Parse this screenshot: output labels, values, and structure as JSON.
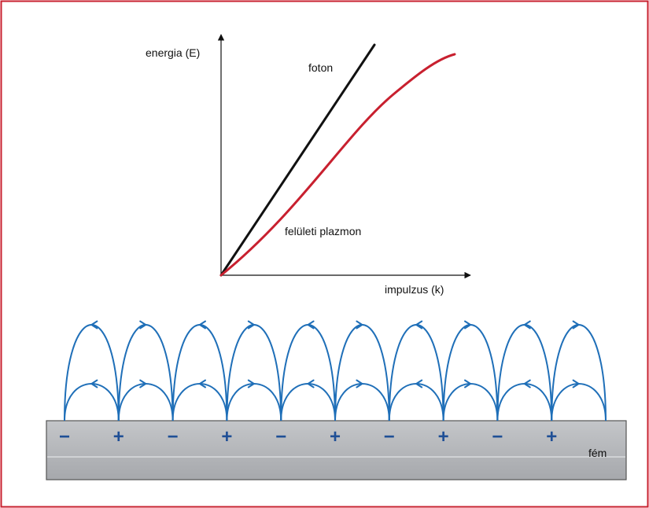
{
  "colors": {
    "frame": "#c8202f",
    "photon_line": "#111111",
    "plasmon_curve": "#c8202f",
    "field_lines": "#1f6fb8",
    "charge": "#1f4f96",
    "metal_top": "#c4c6c9",
    "metal_bottom": "#a6a8ac"
  },
  "graph": {
    "y_axis_label": "energia (E)",
    "x_axis_label": "impulzus (k)",
    "photon_label": "foton",
    "plasmon_label": "felületi plazmon"
  },
  "surface": {
    "metal_label": "fém",
    "charges": [
      "−",
      "+",
      "−",
      "+",
      "−",
      "+",
      "−",
      "+",
      "−",
      "+"
    ],
    "field_loop_count": 10,
    "field_line_levels": 2
  }
}
